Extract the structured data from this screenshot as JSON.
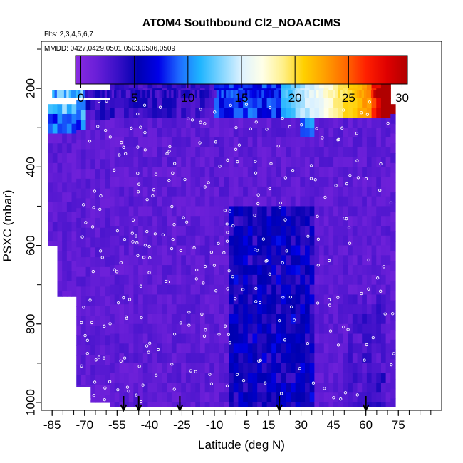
{
  "chart_data": {
    "type": "heatmap",
    "title": "ATOM4 Southbound Cl2_NOAACIMS",
    "subtitle_flights": "Flts: 2,3,4,5,6,7",
    "subtitle_dates": "MMDD: 0427,0429,0501,0503,0506,0509",
    "xlabel": "Latitude (deg N)",
    "ylabel": "PSXC (mbar)",
    "xlim": [
      -90,
      95
    ],
    "ylim": [
      1020,
      80
    ],
    "x_ticks_labeled": [
      -85,
      -70,
      -55,
      -40,
      -25,
      -10,
      5,
      15,
      30,
      45,
      60,
      75
    ],
    "x_tick_labels": [
      "-85",
      "-70",
      "-55",
      "-40",
      "-25",
      "-10",
      "5",
      "15",
      "30",
      "45",
      "60",
      "75"
    ],
    "y_ticks": [
      200,
      400,
      600,
      800,
      1000
    ],
    "y_tick_labels": [
      "200",
      "400",
      "600",
      "800",
      "1000"
    ],
    "colorbar": {
      "min": -0.5,
      "max": 30.5,
      "ticks": [
        0,
        5,
        10,
        15,
        20,
        25,
        30
      ],
      "tick_labels": [
        "0",
        "5",
        "10",
        "15",
        "20",
        "25",
        "30"
      ],
      "colors": [
        "#8A2BE2",
        "#6A1FD8",
        "#3A10C8",
        "#0000B0",
        "#0000E8",
        "#1E6BFF",
        "#1EB4FF",
        "#7FD4FF",
        "#DDF2FF",
        "#FFFFE8",
        "#FFF08A",
        "#FFD000",
        "#FFA000",
        "#FF6A00",
        "#FF2000",
        "#E00000",
        "#B00000"
      ]
    },
    "arrow_latitudes": [
      -52,
      -45,
      -26,
      20,
      60
    ],
    "field_summary": "Mostly 0-3 (purple) throughout 200-1000 mbar; enhanced values near 200-250 mbar reaching 10-15 at southern latitudes (-85 to -70) and rising to 20-30 at 60-65N; blue (3-7) patches in tropics 0-30N at 450-1000 mbar"
  }
}
